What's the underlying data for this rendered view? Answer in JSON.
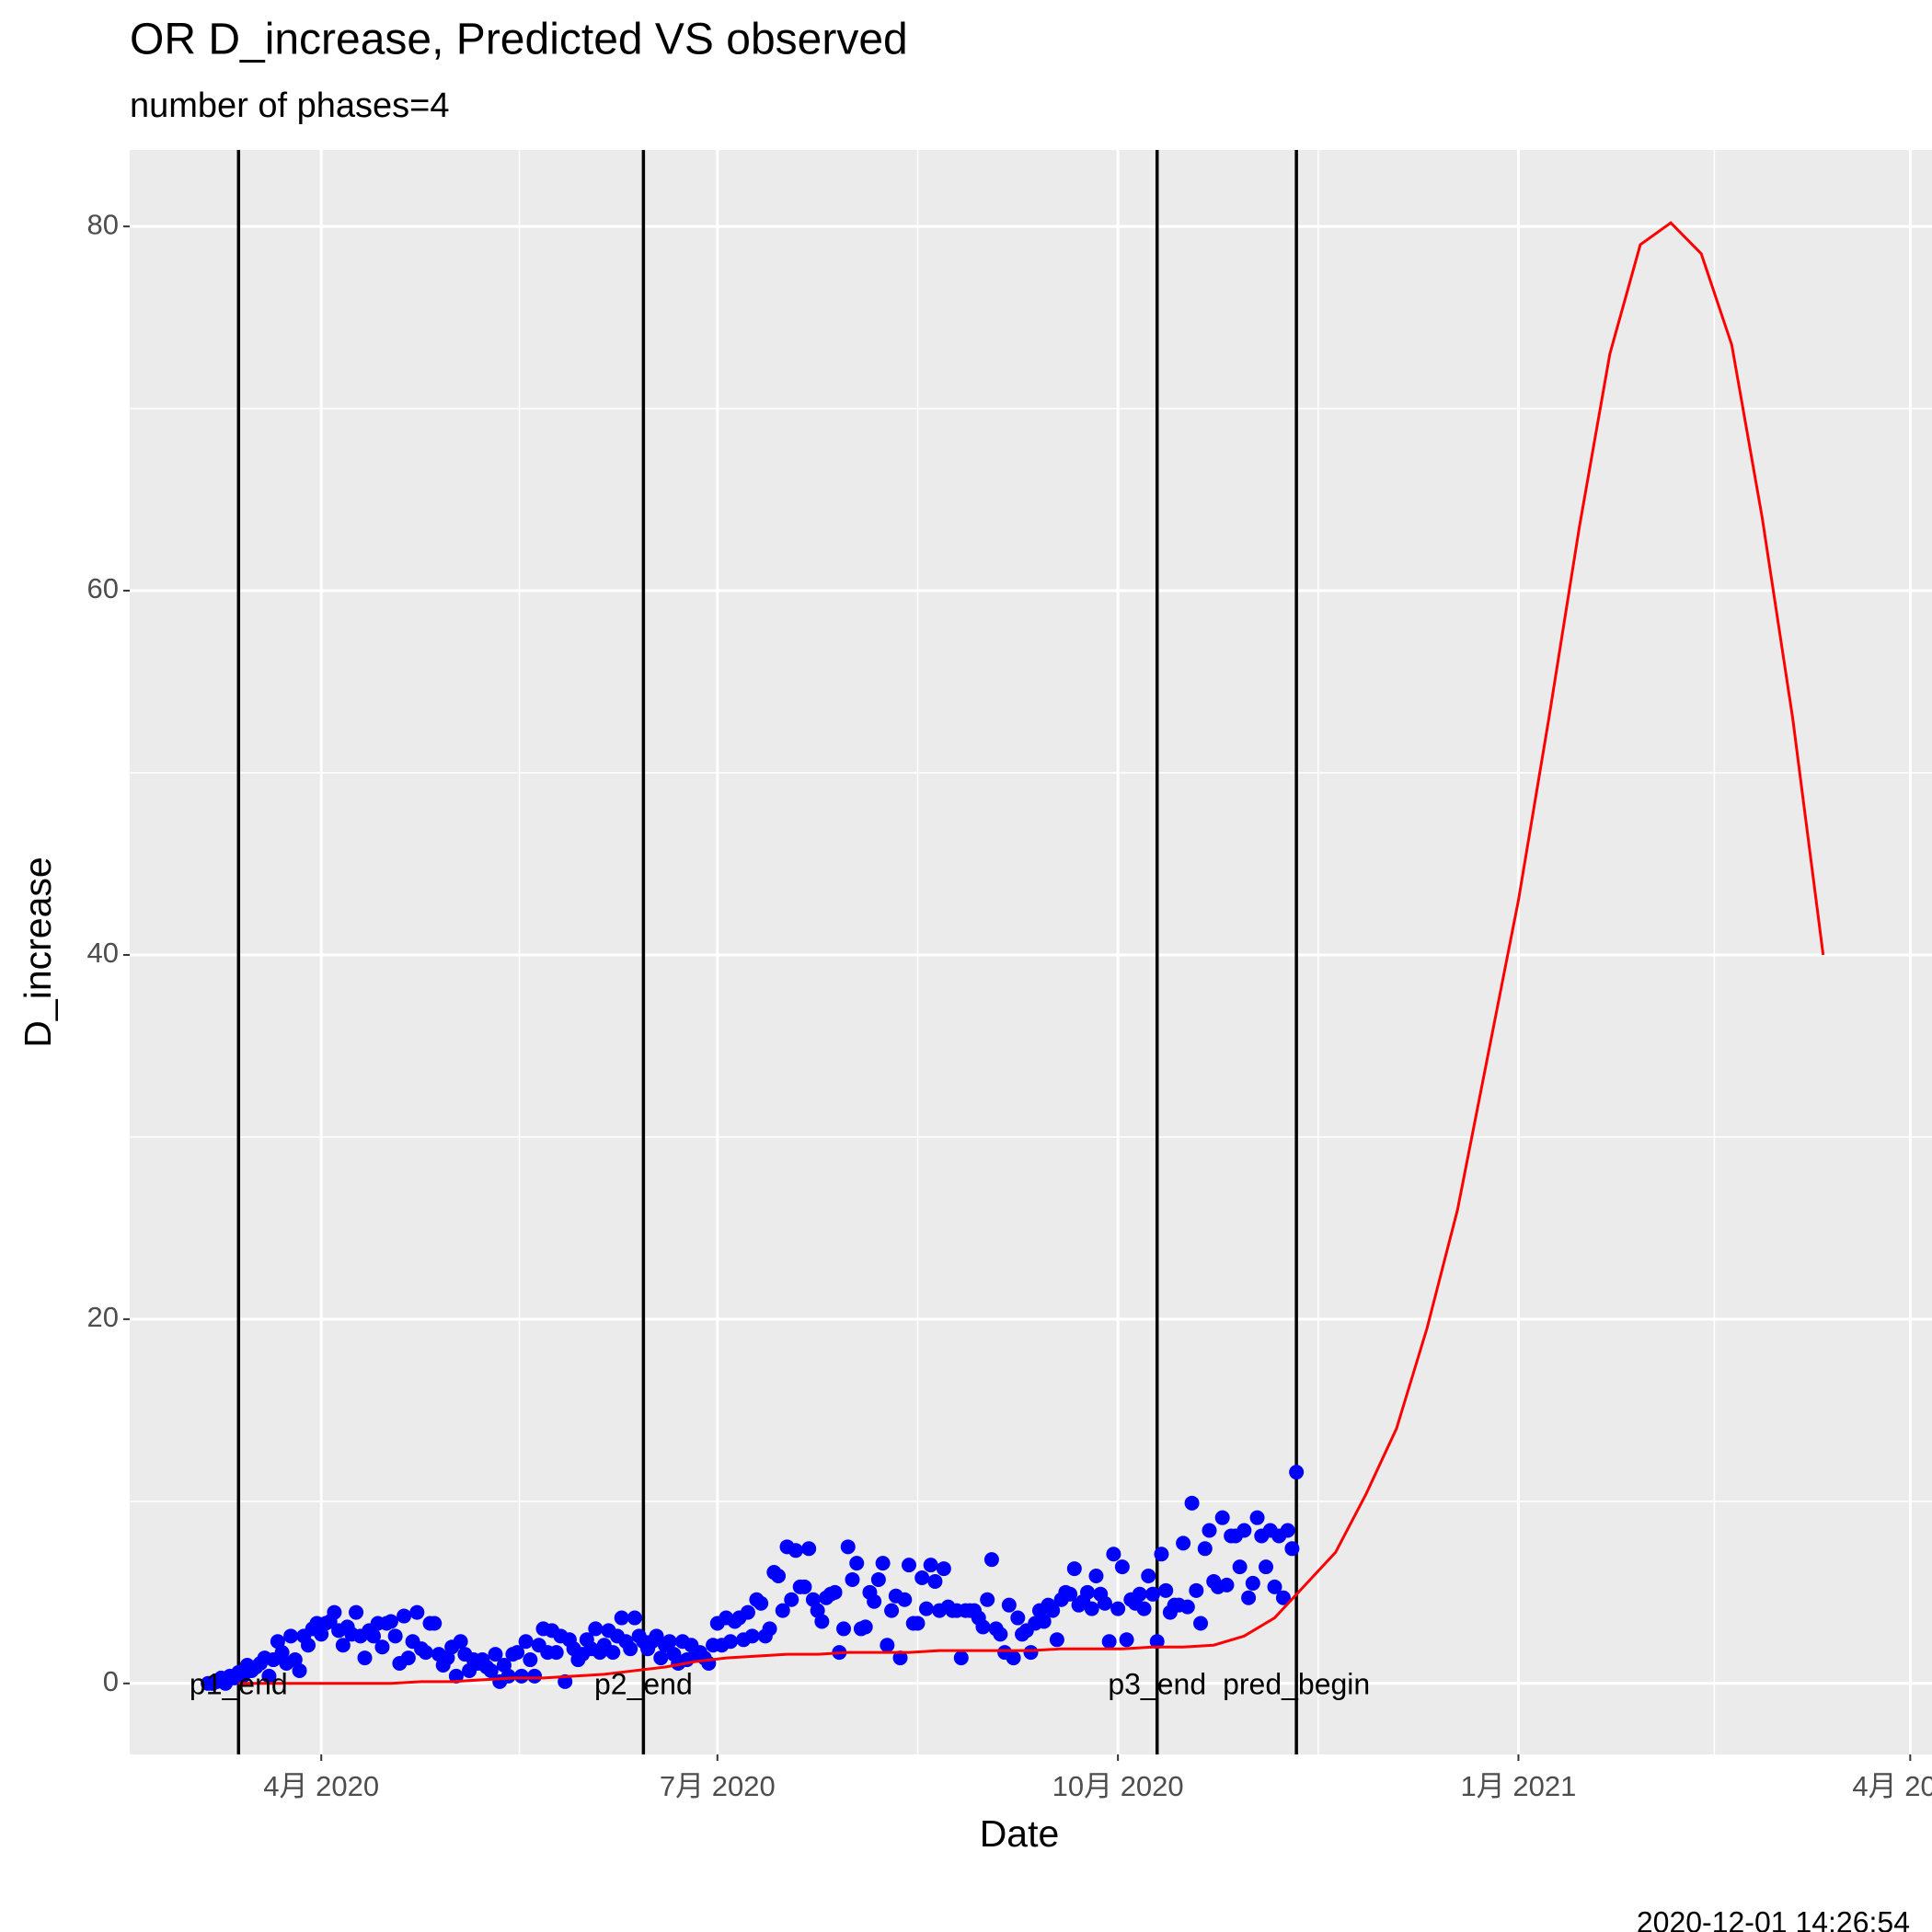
{
  "chart_data": {
    "type": "line",
    "title": "OR D_increase, Predicted VS observed",
    "subtitle": "number of phases=4",
    "x_label": "Date",
    "y_label": "D_increase",
    "caption": "2020-12-01 14:26:54",
    "xlim": [
      "2020-02-17",
      "2021-04-06"
    ],
    "ylim": [
      -3.9,
      84.2
    ],
    "xticks": [
      {
        "value": "2020-04-01",
        "label": "4月 2020"
      },
      {
        "value": "2020-07-01",
        "label": "7月 2020"
      },
      {
        "value": "2020-10-01",
        "label": "10月 2020"
      },
      {
        "value": "2021-01-01",
        "label": "1月 2021"
      },
      {
        "value": "2021-04-01",
        "label": "4月 2021"
      }
    ],
    "yticks": [
      0,
      20,
      40,
      60,
      80
    ],
    "grid": true,
    "vlines": [
      {
        "x": "2020-03-13",
        "label": "p1_end"
      },
      {
        "x": "2020-06-14",
        "label": "p2_end"
      },
      {
        "x": "2020-10-10",
        "label": "p3_end"
      },
      {
        "x": "2020-11-11",
        "label": "pred_begin"
      }
    ],
    "series": [
      {
        "type": "scatter",
        "color": "#0000ff",
        "x": [
          "2020-03-06",
          "2020-03-07",
          "2020-03-08",
          "2020-03-09",
          "2020-03-10",
          "2020-03-11",
          "2020-03-12",
          "2020-03-13",
          "2020-03-14",
          "2020-03-15",
          "2020-03-16",
          "2020-03-17",
          "2020-03-18",
          "2020-03-19",
          "2020-03-20",
          "2020-03-21",
          "2020-03-22",
          "2020-03-23",
          "2020-03-24",
          "2020-03-25",
          "2020-03-26",
          "2020-03-27",
          "2020-03-28",
          "2020-03-29",
          "2020-03-30",
          "2020-03-31",
          "2020-04-01",
          "2020-04-02",
          "2020-04-03",
          "2020-04-04",
          "2020-04-05",
          "2020-04-06",
          "2020-04-07",
          "2020-04-08",
          "2020-04-09",
          "2020-04-10",
          "2020-04-11",
          "2020-04-12",
          "2020-04-13",
          "2020-04-14",
          "2020-04-15",
          "2020-04-16",
          "2020-04-17",
          "2020-04-18",
          "2020-04-19",
          "2020-04-20",
          "2020-04-21",
          "2020-04-22",
          "2020-04-23",
          "2020-04-24",
          "2020-04-25",
          "2020-04-26",
          "2020-04-27",
          "2020-04-28",
          "2020-04-29",
          "2020-04-30",
          "2020-05-01",
          "2020-05-02",
          "2020-05-03",
          "2020-05-04",
          "2020-05-05",
          "2020-05-06",
          "2020-05-07",
          "2020-05-08",
          "2020-05-09",
          "2020-05-10",
          "2020-05-11",
          "2020-05-12",
          "2020-05-13",
          "2020-05-14",
          "2020-05-15",
          "2020-05-16",
          "2020-05-17",
          "2020-05-18",
          "2020-05-19",
          "2020-05-20",
          "2020-05-21",
          "2020-05-22",
          "2020-05-23",
          "2020-05-24",
          "2020-05-25",
          "2020-05-26",
          "2020-05-27",
          "2020-05-28",
          "2020-05-29",
          "2020-05-30",
          "2020-05-31",
          "2020-06-01",
          "2020-06-02",
          "2020-06-03",
          "2020-06-04",
          "2020-06-05",
          "2020-06-06",
          "2020-06-07",
          "2020-06-08",
          "2020-06-09",
          "2020-06-10",
          "2020-06-11",
          "2020-06-12",
          "2020-06-13",
          "2020-06-14",
          "2020-06-15",
          "2020-06-16",
          "2020-06-17",
          "2020-06-18",
          "2020-06-19",
          "2020-06-20",
          "2020-06-21",
          "2020-06-22",
          "2020-06-23",
          "2020-06-24",
          "2020-06-25",
          "2020-06-26",
          "2020-06-27",
          "2020-06-28",
          "2020-06-29",
          "2020-06-30",
          "2020-07-01",
          "2020-07-02",
          "2020-07-03",
          "2020-07-04",
          "2020-07-05",
          "2020-07-06",
          "2020-07-07",
          "2020-07-08",
          "2020-07-09",
          "2020-07-10",
          "2020-07-11",
          "2020-07-12",
          "2020-07-13",
          "2020-07-14",
          "2020-07-15",
          "2020-07-16",
          "2020-07-17",
          "2020-07-18",
          "2020-07-19",
          "2020-07-20",
          "2020-07-21",
          "2020-07-22",
          "2020-07-23",
          "2020-07-24",
          "2020-07-25",
          "2020-07-26",
          "2020-07-27",
          "2020-07-28",
          "2020-07-29",
          "2020-07-30",
          "2020-07-31",
          "2020-08-01",
          "2020-08-02",
          "2020-08-03",
          "2020-08-04",
          "2020-08-05",
          "2020-08-06",
          "2020-08-07",
          "2020-08-08",
          "2020-08-09",
          "2020-08-10",
          "2020-08-11",
          "2020-08-12",
          "2020-08-13",
          "2020-08-14",
          "2020-08-15",
          "2020-08-16",
          "2020-08-17",
          "2020-08-18",
          "2020-08-19",
          "2020-08-20",
          "2020-08-21",
          "2020-08-22",
          "2020-08-23",
          "2020-08-24",
          "2020-08-25",
          "2020-08-26",
          "2020-08-27",
          "2020-08-28",
          "2020-08-29",
          "2020-08-30",
          "2020-08-31",
          "2020-09-01",
          "2020-09-02",
          "2020-09-03",
          "2020-09-04",
          "2020-09-05",
          "2020-09-06",
          "2020-09-07",
          "2020-09-08",
          "2020-09-09",
          "2020-09-10",
          "2020-09-11",
          "2020-09-12",
          "2020-09-13",
          "2020-09-14",
          "2020-09-15",
          "2020-09-16",
          "2020-09-17",
          "2020-09-18",
          "2020-09-19",
          "2020-09-20",
          "2020-09-21",
          "2020-09-22",
          "2020-09-23",
          "2020-09-24",
          "2020-09-25",
          "2020-09-26",
          "2020-09-27",
          "2020-09-28",
          "2020-09-29",
          "2020-09-30",
          "2020-10-01",
          "2020-10-02",
          "2020-10-03",
          "2020-10-04",
          "2020-10-05",
          "2020-10-06",
          "2020-10-07",
          "2020-10-08",
          "2020-10-09",
          "2020-10-10",
          "2020-10-11",
          "2020-10-12",
          "2020-10-13",
          "2020-10-14",
          "2020-10-15",
          "2020-10-16",
          "2020-10-17",
          "2020-10-18",
          "2020-10-19",
          "2020-10-20",
          "2020-10-21",
          "2020-10-22",
          "2020-10-23",
          "2020-10-24",
          "2020-10-25",
          "2020-10-26",
          "2020-10-27",
          "2020-10-28",
          "2020-10-29",
          "2020-10-30",
          "2020-10-31",
          "2020-11-01",
          "2020-11-02",
          "2020-11-03",
          "2020-11-04",
          "2020-11-05",
          "2020-11-06",
          "2020-11-07",
          "2020-11-08",
          "2020-11-09",
          "2020-11-10",
          "2020-11-11"
        ],
        "values": [
          0,
          0,
          0.1,
          0.3,
          0,
          0.4,
          0.3,
          0.6,
          0.4,
          1,
          0.7,
          0.9,
          1.1,
          1.4,
          0.4,
          1.3,
          2.3,
          1.7,
          1.1,
          2.6,
          1.3,
          0.7,
          2.6,
          2.1,
          3,
          3.3,
          2.7,
          3.3,
          3.4,
          3.9,
          2.9,
          2.1,
          3.1,
          2.7,
          3.9,
          2.6,
          1.4,
          2.9,
          2.6,
          3.3,
          2,
          3.3,
          3.4,
          2.6,
          1.1,
          3.7,
          1.4,
          2.3,
          3.9,
          1.9,
          1.7,
          3.3,
          3.3,
          1.6,
          1,
          1.4,
          2,
          0.4,
          2.3,
          1.6,
          0.7,
          1.3,
          1.1,
          1.3,
          0.9,
          0.7,
          1.6,
          0.1,
          1,
          0.4,
          1.6,
          1.7,
          0.4,
          2.3,
          1.3,
          0.4,
          2.1,
          3,
          1.7,
          2.9,
          1.7,
          2.6,
          0.1,
          2.4,
          1.9,
          1.3,
          1.6,
          2.4,
          1.9,
          3,
          1.7,
          2.1,
          2.9,
          1.7,
          2.6,
          3.6,
          2.3,
          1.9,
          3.6,
          2.6,
          2.3,
          1.9,
          2.3,
          2.6,
          1.4,
          2.1,
          2.3,
          1.6,
          1.1,
          2.3,
          1.3,
          2.1,
          1.6,
          1.7,
          1.4,
          1.1,
          2.1,
          3.3,
          2.1,
          3.6,
          2.3,
          3.4,
          3.6,
          2.4,
          3.9,
          2.6,
          4.6,
          4.4,
          2.6,
          3,
          6.1,
          5.9,
          4,
          7.5,
          4.6,
          7.3,
          5.3,
          5.3,
          7.4,
          4.6,
          4,
          3.4,
          4.7,
          4.9,
          5,
          1.7,
          3,
          7.5,
          5.7,
          6.6,
          3,
          3.1,
          5,
          4.5,
          5.7,
          6.6,
          2.1,
          4,
          4.8,
          1.4,
          4.6,
          6.5,
          3.3,
          3.3,
          5.8,
          4.1,
          6.5,
          5.6,
          4,
          6.3,
          4.2,
          4,
          4,
          1.4,
          4,
          4,
          4,
          3.6,
          3.1,
          4.6,
          6.8,
          3,
          2.7,
          1.7,
          4.3,
          1.4,
          3.6,
          2.7,
          2.9,
          1.7,
          3.3,
          4,
          3.4,
          4.3,
          4,
          2.4,
          4.6,
          5,
          4.9,
          6.3,
          4.3,
          4.5,
          5,
          4.1,
          5.9,
          4.9,
          4.4,
          2.3,
          7.1,
          4.1,
          6.4,
          2.4,
          4.6,
          4.4,
          4.9,
          4.1,
          5.9,
          4.9,
          2.3,
          7.1,
          5.1,
          3.9,
          4.3,
          4.3,
          7.7,
          4.2,
          9.9,
          5.1,
          3.3,
          7.4,
          8.4,
          5.6,
          5.3,
          9.1,
          5.4,
          8.1,
          8.1,
          6.4,
          8.4,
          4.7,
          5.5,
          9.1,
          8.1,
          6.4,
          8.4,
          5.3,
          8.1,
          4.7,
          8.4,
          7.4,
          11.6
        ]
      },
      {
        "type": "line",
        "color": "#ff0000",
        "x": [
          "2020-03-13",
          "2020-03-20",
          "2020-03-27",
          "2020-04-03",
          "2020-04-10",
          "2020-04-17",
          "2020-04-24",
          "2020-05-01",
          "2020-05-08",
          "2020-05-15",
          "2020-05-22",
          "2020-05-29",
          "2020-06-05",
          "2020-06-12",
          "2020-06-19",
          "2020-06-26",
          "2020-07-03",
          "2020-07-10",
          "2020-07-17",
          "2020-07-24",
          "2020-07-31",
          "2020-08-07",
          "2020-08-14",
          "2020-08-21",
          "2020-08-28",
          "2020-09-04",
          "2020-09-11",
          "2020-09-18",
          "2020-09-25",
          "2020-10-02",
          "2020-10-09",
          "2020-10-16",
          "2020-10-23",
          "2020-10-30",
          "2020-11-06",
          "2020-11-13",
          "2020-11-20",
          "2020-11-27",
          "2020-12-04",
          "2020-12-11",
          "2020-12-18",
          "2020-12-25",
          "2021-01-01",
          "2021-01-08",
          "2021-01-15",
          "2021-01-22",
          "2021-01-29",
          "2021-02-05",
          "2021-02-12",
          "2021-02-19",
          "2021-02-26",
          "2021-03-05",
          "2021-03-12"
        ],
        "values": [
          0,
          0,
          0,
          0,
          0,
          0,
          0.1,
          0.1,
          0.2,
          0.3,
          0.3,
          0.4,
          0.5,
          0.7,
          0.9,
          1.2,
          1.4,
          1.5,
          1.6,
          1.6,
          1.7,
          1.7,
          1.7,
          1.8,
          1.8,
          1.8,
          1.8,
          1.9,
          1.9,
          1.9,
          2.0,
          2.0,
          2.1,
          2.6,
          3.6,
          5.4,
          7.2,
          10.4,
          14,
          19.5,
          26,
          34.5,
          43,
          53,
          63.5,
          73,
          79,
          80.2,
          78.5,
          73.5,
          64,
          53,
          40
        ]
      }
    ]
  }
}
